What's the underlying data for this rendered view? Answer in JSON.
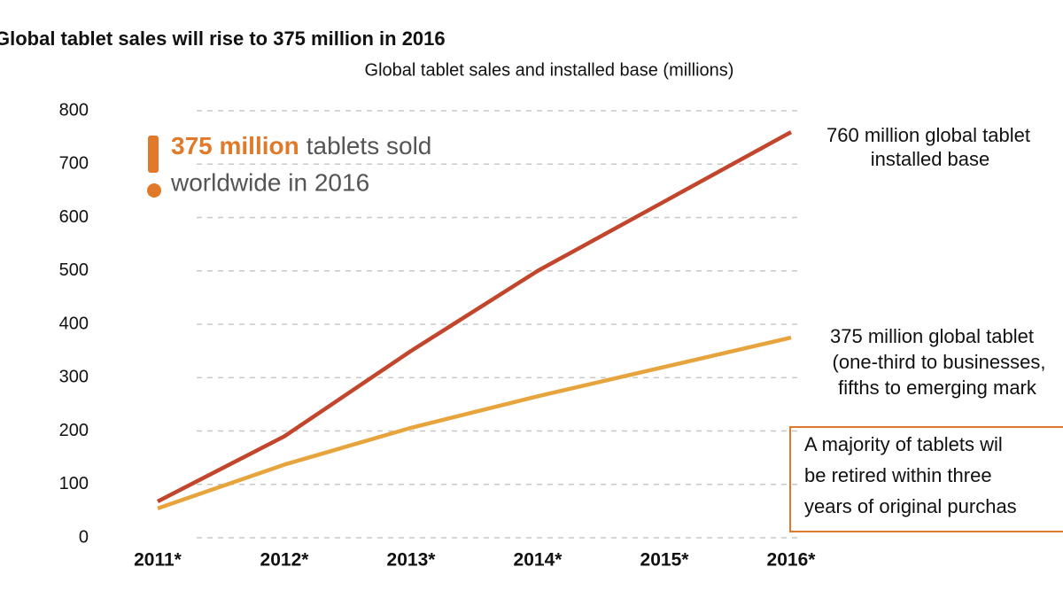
{
  "chart_data": {
    "type": "line",
    "title": "Global tablet sales will rise to 375 million in 2016",
    "subtitle": "Global tablet sales and installed base (millions)",
    "categories": [
      "2011*",
      "2012*",
      "2013*",
      "2014*",
      "2015*",
      "2016*"
    ],
    "series": [
      {
        "color": "#c2462c",
        "values": [
          68,
          190,
          350,
          500,
          630,
          760
        ]
      },
      {
        "color": "#e8a43c",
        "values": [
          55,
          137,
          206,
          265,
          320,
          375
        ]
      }
    ],
    "ylim": [
      0,
      800
    ],
    "yticks": [
      0,
      100,
      200,
      300,
      400,
      500,
      600,
      700,
      800
    ],
    "grid": true,
    "callout": {
      "highlight": "375 million",
      "line1": "tablets sold",
      "line2": "worldwide in 2016",
      "color": "#e07a2a"
    },
    "annotations": [
      {
        "lines": [
          "760 million global tablet",
          "installed base"
        ]
      },
      {
        "lines": [
          "375 million global tablet",
          "(one-third to businesses,",
          "fifths to emerging mark"
        ]
      }
    ],
    "note_box": {
      "lines": [
        "A majority of tablets wil",
        "be retired within three",
        "years of original purchas"
      ],
      "color": "#e07a2a"
    }
  }
}
